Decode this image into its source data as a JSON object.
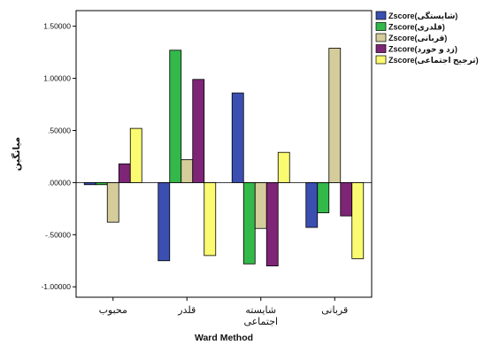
{
  "chart_data": {
    "type": "bar",
    "title": "",
    "xlabel": "Ward Method",
    "ylabel": "میانگین",
    "ylim": [
      -1.1,
      1.65
    ],
    "yticks": [
      -1.0,
      -0.5,
      0.0,
      0.5,
      1.0,
      1.5
    ],
    "ytick_labels": [
      "-1.00000",
      "-.50000",
      ".00000",
      ".50000",
      "1.00000",
      "1.50000"
    ],
    "categories": [
      "محبوب",
      "قلدر",
      "شایسته اجتماعی",
      "قربانی"
    ],
    "category_lines": [
      [
        "محبوب"
      ],
      [
        "قلدر"
      ],
      [
        "شایسته",
        "اجتماعی"
      ],
      [
        "قربانی"
      ]
    ],
    "legend_position": "right",
    "grid": false,
    "series": [
      {
        "name": "Zscore(شایستگی)",
        "color": "#3a4fb0",
        "values": [
          -0.02,
          -0.75,
          0.86,
          -0.43
        ]
      },
      {
        "name": "Zscore(قلدری)",
        "color": "#33b84a",
        "values": [
          -0.02,
          1.27,
          -0.78,
          -0.29
        ]
      },
      {
        "name": "Zscore(قربانی)",
        "color": "#d4cc9a",
        "values": [
          -0.38,
          0.22,
          -0.44,
          1.29
        ]
      },
      {
        "name": "Zscore(زد و خورد)",
        "color": "#7e2577",
        "values": [
          0.18,
          0.99,
          -0.8,
          -0.32
        ]
      },
      {
        "name": "Zscore(ترجیح اجتماعی)",
        "color": "#fbfb72",
        "values": [
          0.52,
          -0.7,
          0.29,
          -0.73
        ]
      }
    ]
  }
}
